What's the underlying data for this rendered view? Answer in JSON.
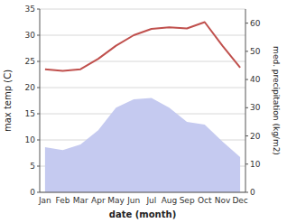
{
  "chart_data": {
    "type": "line",
    "xlabel": "date (month)",
    "ylabel": "max temp (C)",
    "y2label": "med. precipitation (kg/m2)",
    "categories": [
      "Jan",
      "Feb",
      "Mar",
      "Apr",
      "May",
      "Jun",
      "Jul",
      "Aug",
      "Sep",
      "Oct",
      "Nov",
      "Dec"
    ],
    "series": [
      {
        "type": "area",
        "axis": "y2",
        "color": "#c5caf0",
        "values": [
          16.0,
          15.0,
          17.0,
          22.0,
          30.0,
          33.0,
          33.5,
          30.0,
          25.0,
          24.0,
          18.0,
          12.5
        ]
      },
      {
        "type": "line",
        "color": "#c0504d",
        "values": [
          23.5,
          23.2,
          23.5,
          25.5,
          28.0,
          30.0,
          31.2,
          31.5,
          31.3,
          32.5,
          28.0,
          23.8
        ]
      }
    ],
    "ylim": [
      0,
      35
    ],
    "yticks": [
      0,
      5,
      10,
      15,
      20,
      25,
      30,
      35
    ],
    "y2lim": [
      0,
      65
    ],
    "y2ticks": [
      0,
      10,
      20,
      30,
      40,
      50,
      60
    ],
    "grid": true
  }
}
